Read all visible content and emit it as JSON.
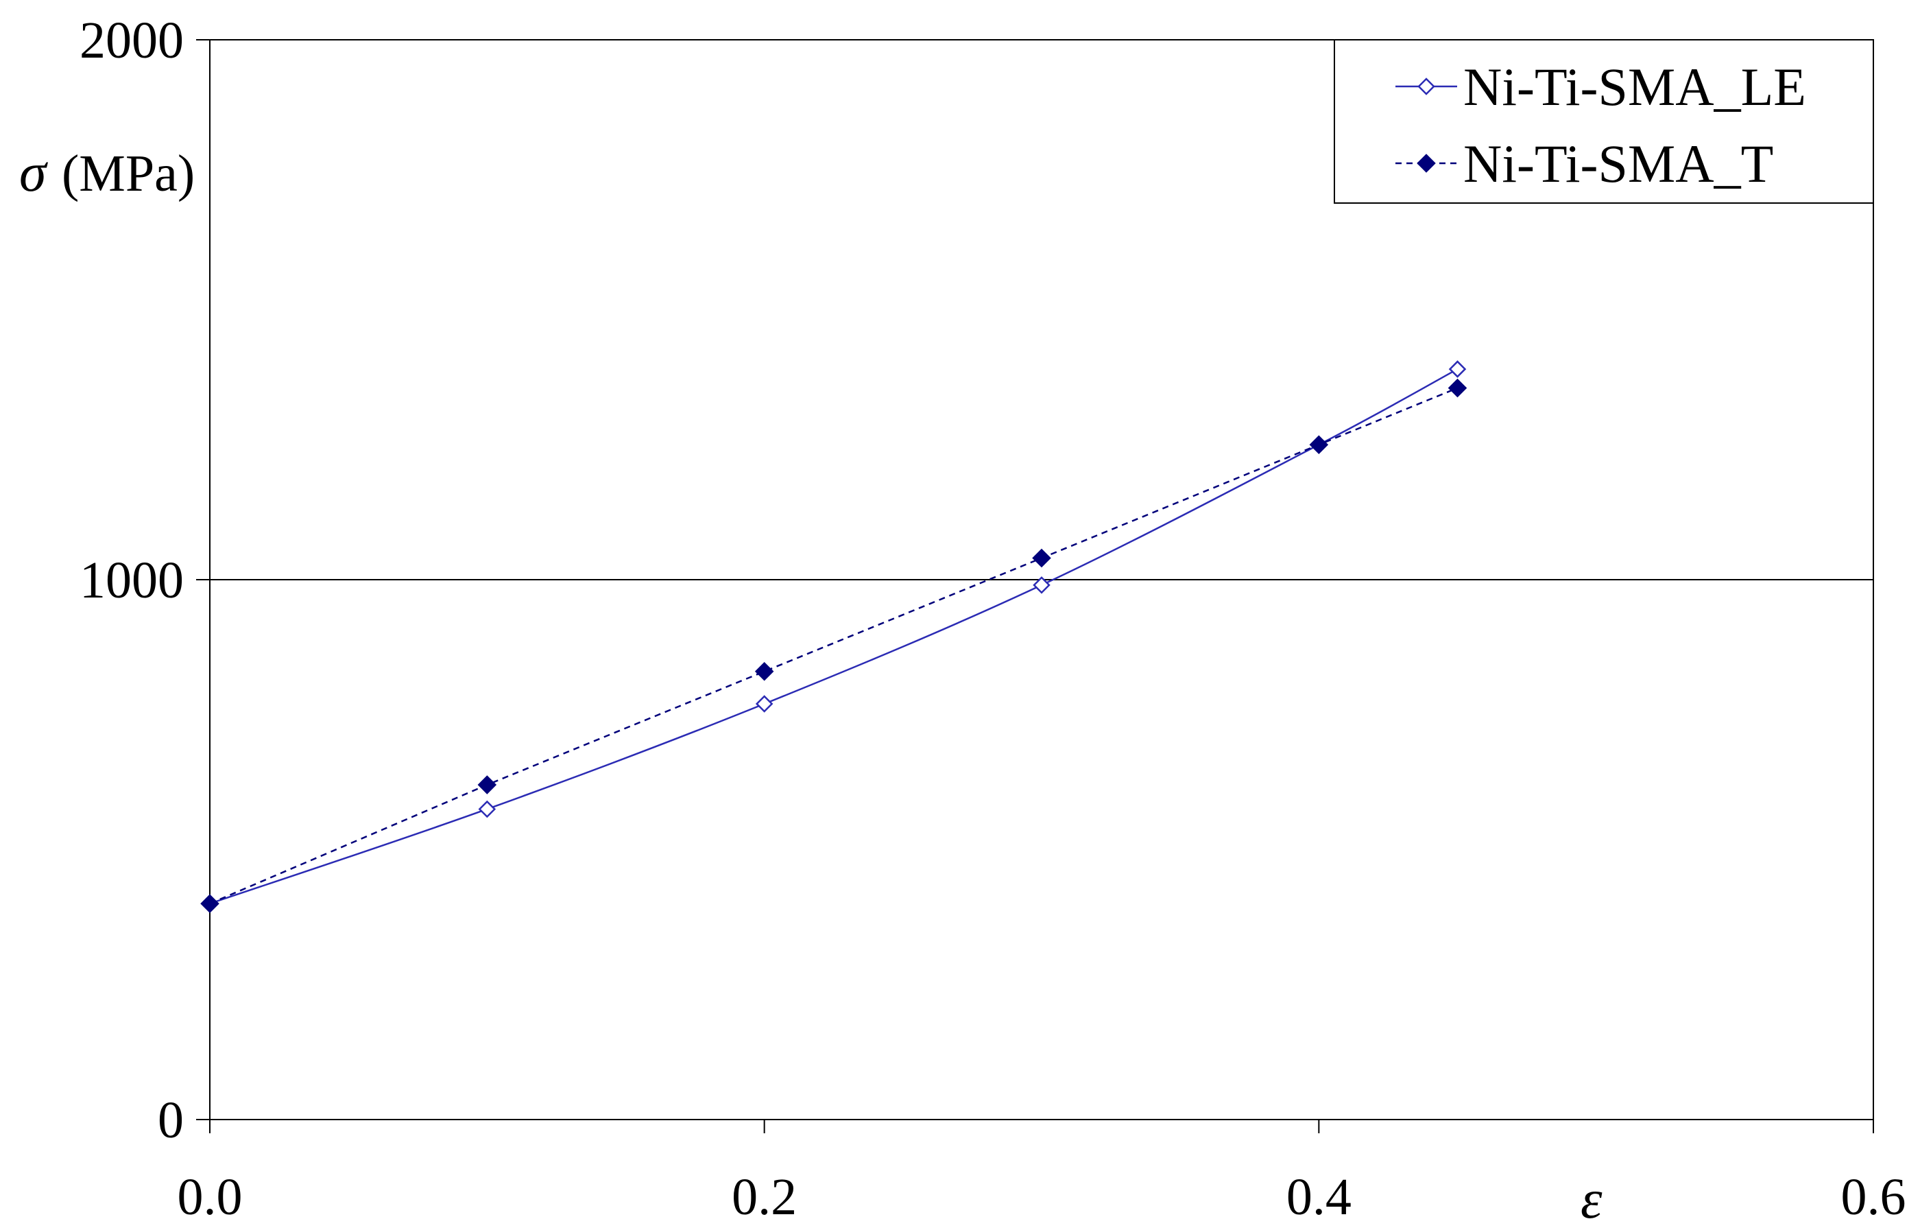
{
  "chart_data": {
    "type": "line",
    "x_axis": {
      "symbol": "ε",
      "range": [
        0,
        0.6
      ],
      "ticks": [
        {
          "value": 0,
          "label": "0.0"
        },
        {
          "value": 0.2,
          "label": "0.2"
        },
        {
          "value": 0.4,
          "label": "0.4"
        },
        {
          "value": 0.6,
          "label": "0.6"
        }
      ]
    },
    "y_axis": {
      "symbol": "σ",
      "unit": "(MPa)",
      "range": [
        0,
        2000
      ],
      "ticks": [
        {
          "value": 0,
          "label": "0"
        },
        {
          "value": 1000,
          "label": "1000"
        },
        {
          "value": 2000,
          "label": "2000"
        }
      ],
      "gridlines": [
        1000,
        2000
      ]
    },
    "legend_position": "top-right",
    "series": [
      {
        "name": "Ni-Ti-SMA_LE",
        "line_style": "solid",
        "smooth": true,
        "marker": "open-diamond",
        "color": "#2b2bb4",
        "x": [
          0,
          0.1,
          0.2,
          0.3,
          0.4,
          0.45
        ],
        "y": [
          400,
          575,
          770,
          990,
          1250,
          1390
        ]
      },
      {
        "name": "Ni-Ti-SMA_T",
        "line_style": "dashed",
        "smooth": false,
        "marker": "filled-diamond",
        "color": "#00007a",
        "x": [
          0,
          0.1,
          0.2,
          0.3,
          0.4,
          0.45
        ],
        "y": [
          400,
          620,
          830,
          1040,
          1250,
          1355
        ]
      }
    ]
  }
}
